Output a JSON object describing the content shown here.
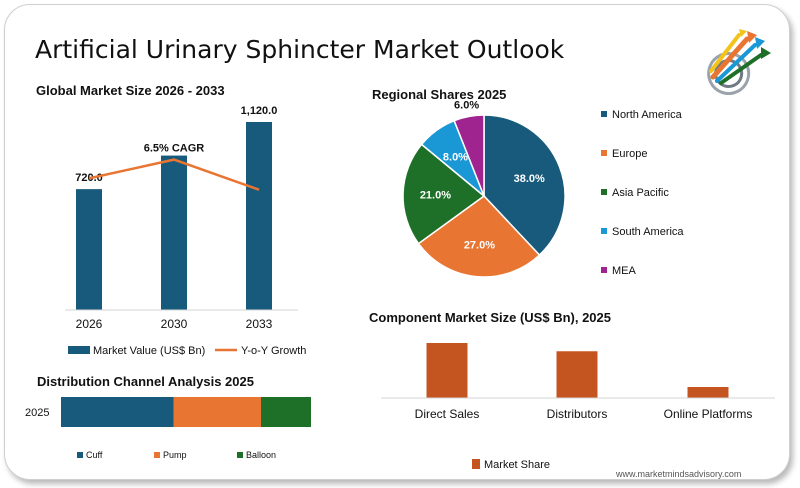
{
  "page": {
    "title": "Artificial Urinary Sphincter Market Outlook",
    "footer": "www.marketmindsadvisory.com"
  },
  "colors": {
    "navy": "#175a7c",
    "orange": "#e87532",
    "green": "#1e7029",
    "sky": "#1a98d5",
    "purple": "#a0248f",
    "rust": "#c55520"
  },
  "logo": {
    "icon": "target-arrows-logo-icon"
  },
  "chart_data": [
    {
      "id": "global",
      "type": "bar",
      "title": "Global Market Size 2026 - 2033",
      "categories": [
        "2026",
        "2030",
        "2033"
      ],
      "series": [
        {
          "name": "Market Value (US$ Bn)",
          "values": [
            720.0,
            920.0,
            1120.0
          ],
          "labels": [
            "720.0",
            "",
            "1,120.0"
          ],
          "color": "#175a7c"
        },
        {
          "name": "Y-o-Y Growth",
          "type": "line",
          "values": [
            0.7,
            0.8,
            0.64
          ],
          "color": "#e87532"
        }
      ],
      "annotation": "6.5% CAGR",
      "ylim": [
        0,
        1120
      ],
      "grid": false,
      "legend": "bottom"
    },
    {
      "id": "regional",
      "type": "pie",
      "title": "Regional Shares 2025",
      "labels": [
        "North America",
        "Europe",
        "Asia Pacific",
        "South America",
        "MEA"
      ],
      "values": [
        38.0,
        27.0,
        21.0,
        8.0,
        6.0
      ],
      "value_labels": [
        "38.0%",
        "27.0%",
        "21.0%",
        "8.0%",
        "6.0%"
      ],
      "colors": [
        "#175a7c",
        "#e87532",
        "#1e7029",
        "#1a98d5",
        "#a0248f"
      ],
      "legend": "right"
    },
    {
      "id": "component",
      "type": "bar",
      "title": "Component Market Size (US$ Bn), 2025",
      "categories": [
        "Direct Sales",
        "Distributors",
        "Online Platforms"
      ],
      "series": [
        {
          "name": "Market Share",
          "values": [
            1.0,
            0.85,
            0.2
          ],
          "color": "#c55520"
        }
      ],
      "ylim": [
        0,
        1.0
      ],
      "grid": false,
      "legend": "bottom"
    },
    {
      "id": "distribution",
      "type": "bar",
      "orientation": "horizontal",
      "stacked": true,
      "title": "Distribution Channel Analysis 2025",
      "categories": [
        "2025"
      ],
      "series": [
        {
          "name": "Cuff",
          "values": [
            45
          ],
          "color": "#175a7c"
        },
        {
          "name": "Pump",
          "values": [
            35
          ],
          "color": "#e87532"
        },
        {
          "name": "Balloon",
          "values": [
            20
          ],
          "color": "#1e7029"
        }
      ],
      "xlim": [
        0,
        100
      ],
      "grid": false,
      "legend": "bottom"
    }
  ]
}
